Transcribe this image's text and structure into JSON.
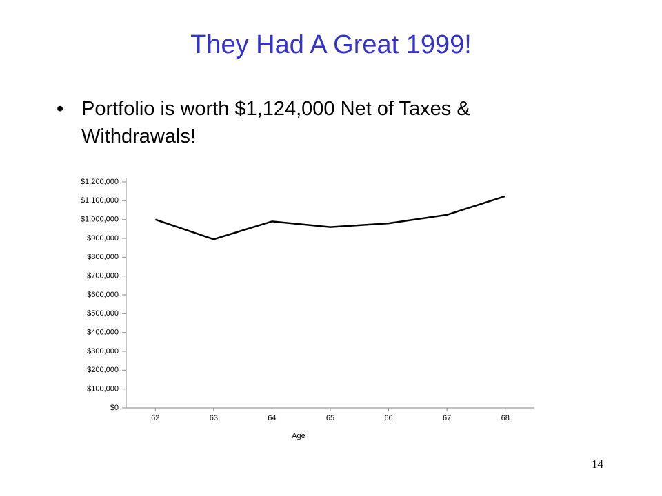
{
  "slide": {
    "title": "They Had A Great 1999!",
    "bullet": "Portfolio is worth $1,124,000 Net of Taxes & Withdrawals!",
    "page_number": "14"
  },
  "chart_data": {
    "type": "line",
    "x_label": "Age",
    "x": [
      62,
      63,
      64,
      65,
      66,
      67,
      68
    ],
    "series": [
      {
        "name": "Portfolio",
        "color": "#000000",
        "values": [
          1000000,
          895000,
          990000,
          960000,
          980000,
          1025000,
          1124000
        ]
      }
    ],
    "xlim": [
      61.5,
      68.5
    ],
    "xticks": [
      62,
      63,
      64,
      65,
      66,
      67,
      68
    ],
    "ylim": [
      0,
      1200000
    ],
    "yticks": [
      {
        "value": 0,
        "label": "$0"
      },
      {
        "value": 100000,
        "label": "$100,000"
      },
      {
        "value": 200000,
        "label": "$200,000"
      },
      {
        "value": 300000,
        "label": "$300,000"
      },
      {
        "value": 400000,
        "label": "$400,000"
      },
      {
        "value": 500000,
        "label": "$500,000"
      },
      {
        "value": 600000,
        "label": "$600,000"
      },
      {
        "value": 700000,
        "label": "$700,000"
      },
      {
        "value": 800000,
        "label": "$800,000"
      },
      {
        "value": 900000,
        "label": "$900,000"
      },
      {
        "value": 1000000,
        "label": "$1,000,000"
      },
      {
        "value": 1100000,
        "label": "$1,100,000"
      },
      {
        "value": 1200000,
        "label": "$1,200,000"
      }
    ],
    "grid": false
  }
}
